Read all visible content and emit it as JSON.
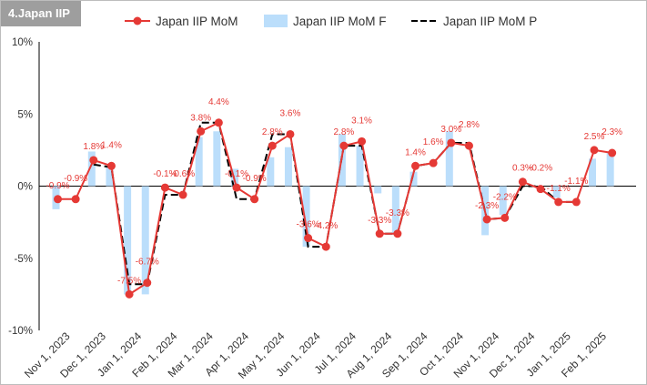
{
  "panel_tag": "4.Japan IIP",
  "colors": {
    "mom": "#e53935",
    "final": "#bbdefb",
    "prelim": "#000000",
    "axis": "#000000",
    "text": "#333333"
  },
  "chart_data": {
    "type": "bar",
    "title": "",
    "xlabel": "",
    "ylabel": "",
    "ylim": [
      -10,
      10
    ],
    "yticks": [
      -10,
      -5,
      0,
      5,
      10
    ],
    "ytick_labels": [
      "-10%",
      "-5%",
      "0%",
      "5%",
      "10%"
    ],
    "xticks": [
      "Nov 1, 2023",
      "Dec 1, 2023",
      "Jan 1, 2024",
      "Feb 1, 2024",
      "Mar 1, 2024",
      "Apr 1, 2024",
      "May 1, 2024",
      "Jun 1, 2024",
      "Jul 1, 2024",
      "Aug 1, 2024",
      "Sep 1, 2024",
      "Oct 1, 2024",
      "Nov 1, 2024",
      "Dec 1, 2024",
      "Jan 1, 2025",
      "Feb 1, 2025"
    ],
    "legend_position": "top",
    "series": [
      {
        "name": "Japan IIP MoM",
        "type": "line-marker",
        "values": [
          -0.9,
          -0.9,
          1.8,
          1.4,
          -7.5,
          -6.7,
          -0.1,
          -0.6,
          3.8,
          4.4,
          -0.1,
          -0.9,
          2.8,
          3.6,
          -3.6,
          -4.2,
          2.8,
          3.1,
          -3.3,
          -3.3,
          1.4,
          1.6,
          3.0,
          2.8,
          -2.3,
          -2.2,
          0.3,
          -0.2,
          -1.1,
          -1.1,
          2.5,
          2.3
        ],
        "labels": [
          "-0.9%",
          "-0.9%",
          "1.8%",
          "1.4%",
          "-7.5%",
          "-6.7%",
          "-0.1%",
          "-0.6%",
          "3.8%",
          "4.4%",
          "-0.1%",
          "-0.9%",
          "2.8%",
          "3.6%",
          "-3.6%",
          "-4.2%",
          "2.8%",
          "3.1%",
          "-3.3%",
          "-3.3%",
          "1.4%",
          "1.6%",
          "3.0%",
          "2.8%",
          "-2.3%",
          "-2.2%",
          "0.3%",
          "-0.2%",
          "-1.1%",
          "-1.1%",
          "2.5%",
          "2.3%"
        ]
      },
      {
        "name": "Japan IIP MoM F",
        "type": "bar",
        "values": [
          -1.6,
          null,
          2.4,
          1.3,
          -7.5,
          -7.5,
          null,
          null,
          3.4,
          3.8,
          1.2,
          null,
          2.0,
          2.7,
          -4.2,
          null,
          3.6,
          2.8,
          -0.5,
          -3.3,
          1.0,
          null,
          3.8,
          null,
          -3.4,
          -2.0,
          null,
          null,
          -0.8,
          null,
          1.9,
          2.4
        ]
      },
      {
        "name": "Japan IIP MoM P",
        "type": "line-dashed",
        "values": [
          null,
          null,
          1.5,
          1.3,
          -6.8,
          -6.8,
          -0.6,
          -0.6,
          4.4,
          4.4,
          -0.9,
          -0.9,
          3.6,
          3.6,
          -4.2,
          -4.2,
          2.8,
          2.8,
          -3.3,
          -3.3,
          1.4,
          1.6,
          3.0,
          3.0,
          -2.3,
          -2.2,
          0.0,
          0.0,
          -1.1,
          -1.1,
          null,
          null
        ]
      }
    ]
  }
}
